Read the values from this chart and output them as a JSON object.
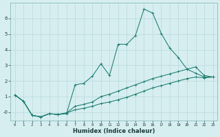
{
  "xlabel": "Humidex (Indice chaleur)",
  "bg_color": "#d6eef0",
  "grid_color": "#b8d8dc",
  "line_color": "#1a7a6e",
  "xlim": [
    -0.5,
    23.5
  ],
  "ylim": [
    -0.55,
    7.0
  ],
  "yticks": [
    0,
    1,
    2,
    3,
    4,
    5,
    6
  ],
  "ytick_labels": [
    "-0",
    "1",
    "2",
    "3",
    "4",
    "5",
    "6"
  ],
  "xticks": [
    0,
    1,
    2,
    3,
    4,
    5,
    6,
    7,
    8,
    9,
    10,
    11,
    12,
    13,
    14,
    15,
    16,
    17,
    18,
    19,
    20,
    21,
    22,
    23
  ],
  "line1_x": [
    0,
    1,
    2,
    3,
    4,
    5,
    6,
    7,
    8,
    9,
    10,
    11,
    12,
    13,
    14,
    15,
    16,
    17,
    18,
    19,
    20,
    21,
    22,
    23
  ],
  "line1_y": [
    1.1,
    0.7,
    -0.2,
    -0.3,
    -0.1,
    -0.15,
    -0.1,
    1.75,
    1.85,
    2.3,
    3.1,
    2.35,
    4.35,
    4.35,
    4.9,
    6.6,
    6.35,
    5.05,
    4.1,
    3.5,
    2.75,
    2.5,
    2.25,
    2.25
  ],
  "line2_x": [
    0,
    1,
    2,
    3,
    4,
    5,
    6,
    7,
    8,
    9,
    10,
    11,
    12,
    13,
    14,
    15,
    16,
    17,
    18,
    19,
    20,
    21,
    22,
    23
  ],
  "line2_y": [
    1.1,
    0.7,
    -0.2,
    -0.3,
    -0.1,
    -0.15,
    -0.05,
    0.38,
    0.5,
    0.65,
    1.0,
    1.15,
    1.35,
    1.55,
    1.75,
    1.95,
    2.15,
    2.3,
    2.45,
    2.6,
    2.75,
    2.9,
    2.35,
    2.25
  ],
  "line3_x": [
    0,
    1,
    2,
    3,
    4,
    5,
    6,
    7,
    8,
    9,
    10,
    11,
    12,
    13,
    14,
    15,
    16,
    17,
    18,
    19,
    20,
    21,
    22,
    23
  ],
  "line3_y": [
    1.1,
    0.7,
    -0.2,
    -0.3,
    -0.1,
    -0.15,
    -0.05,
    0.15,
    0.25,
    0.38,
    0.55,
    0.65,
    0.8,
    0.95,
    1.15,
    1.35,
    1.55,
    1.7,
    1.85,
    2.0,
    2.15,
    2.25,
    2.2,
    2.25
  ]
}
